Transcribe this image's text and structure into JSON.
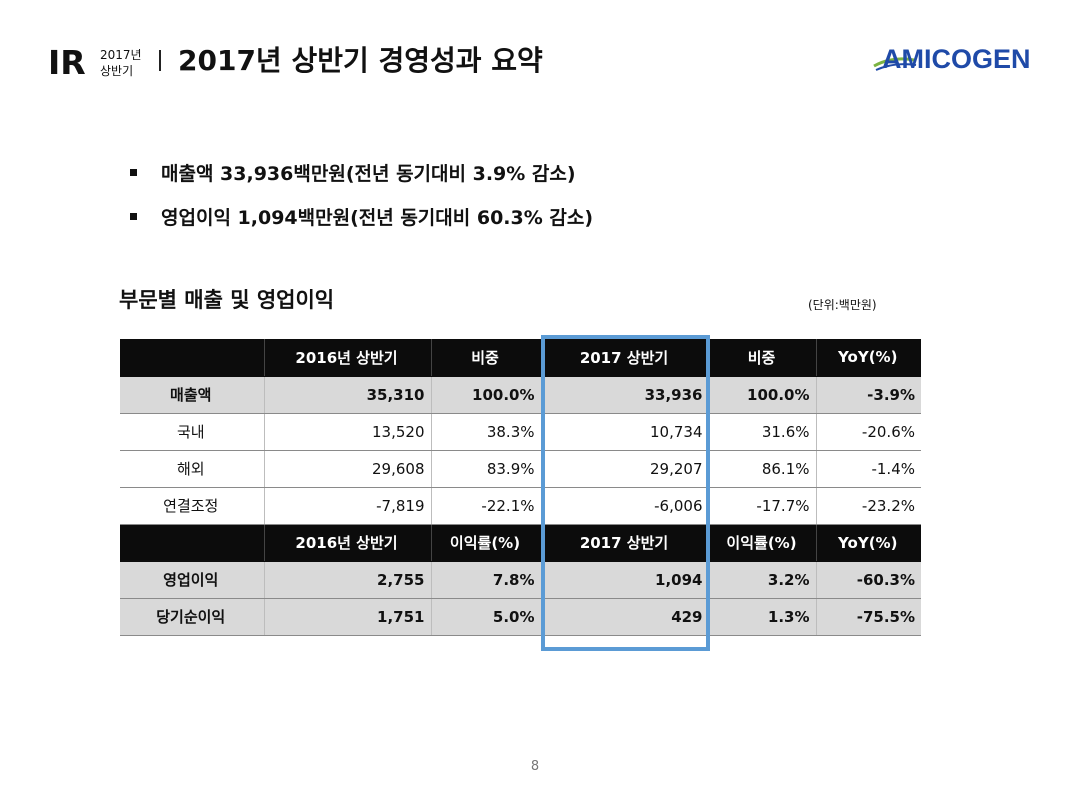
{
  "header": {
    "ir": "IR",
    "year": "2017년",
    "period": "상반기",
    "title": "2017년 상반기 경영성과 요약",
    "logo_text": "AMICOGEN",
    "logo_color": "#1f4aa8"
  },
  "bullets": [
    "매출액 33,936백만원(전년 동기대비 3.9% 감소)",
    "영업이익 1,094백만원(전년 동기대비 60.3% 감소)"
  ],
  "section": {
    "title": "부문별 매출 및 영업이익",
    "unit": "(단위:백만원)"
  },
  "table": {
    "header1": [
      "",
      "2016년 상반기",
      "비중",
      "2017 상반기",
      "비중",
      "YoY(%)"
    ],
    "rows1": [
      [
        "매출액",
        "35,310",
        "100.0%",
        "33,936",
        "100.0%",
        "-3.9%"
      ],
      [
        "국내",
        "13,520",
        "38.3%",
        "10,734",
        "31.6%",
        "-20.6%"
      ],
      [
        "해외",
        "29,608",
        "83.9%",
        "29,207",
        "86.1%",
        "-1.4%"
      ],
      [
        "연결조정",
        "-7,819",
        "-22.1%",
        "-6,006",
        "-17.7%",
        "-23.2%"
      ]
    ],
    "header2": [
      "",
      "2016년 상반기",
      "이익률(%)",
      "2017 상반기",
      "이익률(%)",
      "YoY(%)"
    ],
    "rows2": [
      [
        "영업이익",
        "2,755",
        "7.8%",
        "1,094",
        "3.2%",
        "-60.3%"
      ],
      [
        "당기순이익",
        "1,751",
        "5.0%",
        "429",
        "1.3%",
        "-75.5%"
      ]
    ]
  },
  "highlight_color": "#5b9bd5",
  "page_number": "8"
}
